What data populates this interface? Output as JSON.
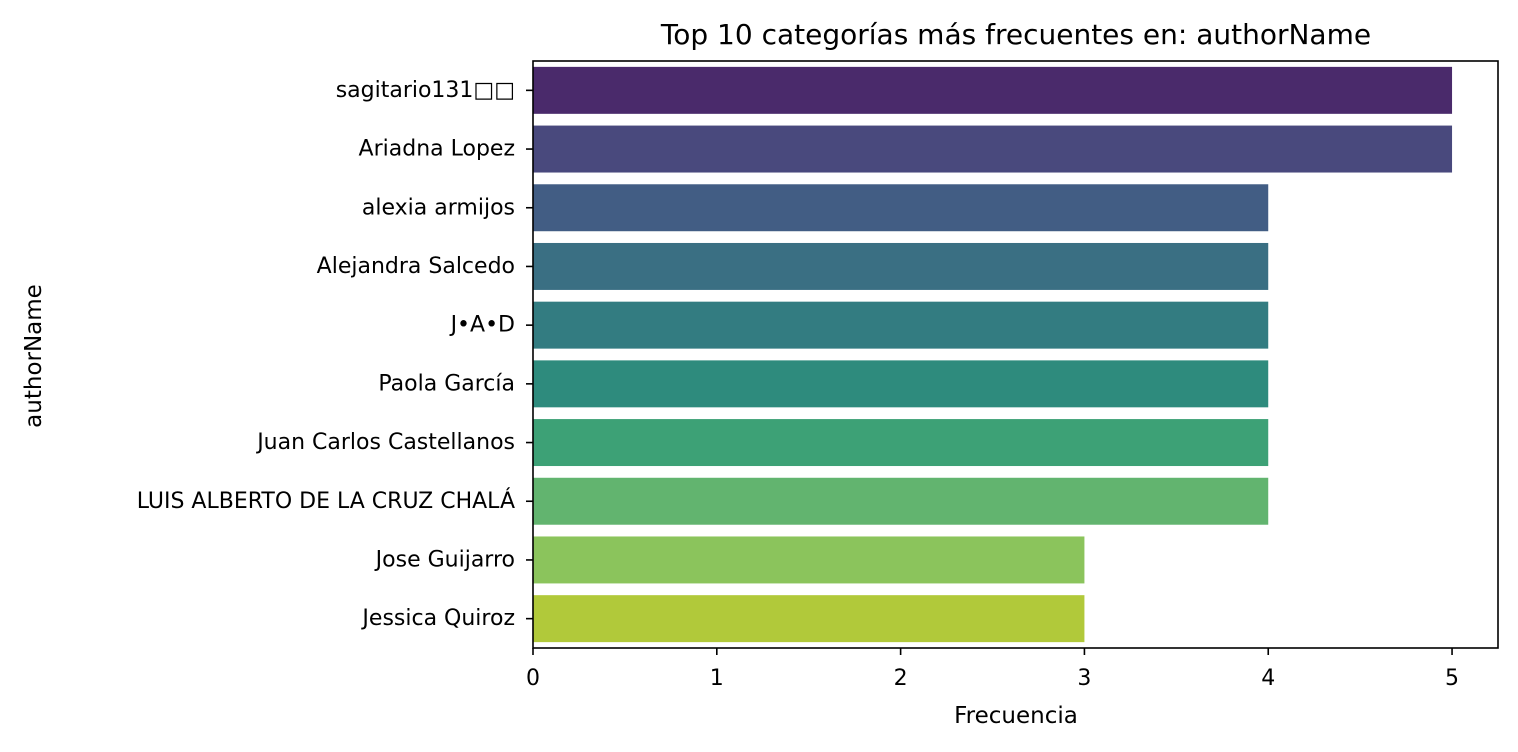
{
  "chart_data": {
    "type": "bar",
    "orientation": "horizontal",
    "title": "Top 10 categorías más frecuentes en: authorName",
    "xlabel": "Frecuencia",
    "ylabel": "authorName",
    "xlim": [
      0,
      5.25
    ],
    "xticks": [
      0,
      1,
      2,
      3,
      4,
      5
    ],
    "grid": false,
    "categories": [
      "sagitario131□□",
      "Ariadna Lopez",
      "alexia armijos",
      "Alejandra Salcedo",
      "J•A•D",
      "Paola García",
      "Juan Carlos Castellanos",
      "LUIS ALBERTO DE LA CRUZ CHALÁ",
      "Jose Guijarro",
      "Jessica Quiroz"
    ],
    "values": [
      5,
      5,
      4,
      4,
      4,
      4,
      4,
      4,
      3,
      3
    ],
    "colors": [
      "#4a2a6b",
      "#49497d",
      "#425d84",
      "#3a6f83",
      "#337c81",
      "#2e8b7d",
      "#3da176",
      "#62b46f",
      "#8bc45c",
      "#b1c93a"
    ]
  }
}
